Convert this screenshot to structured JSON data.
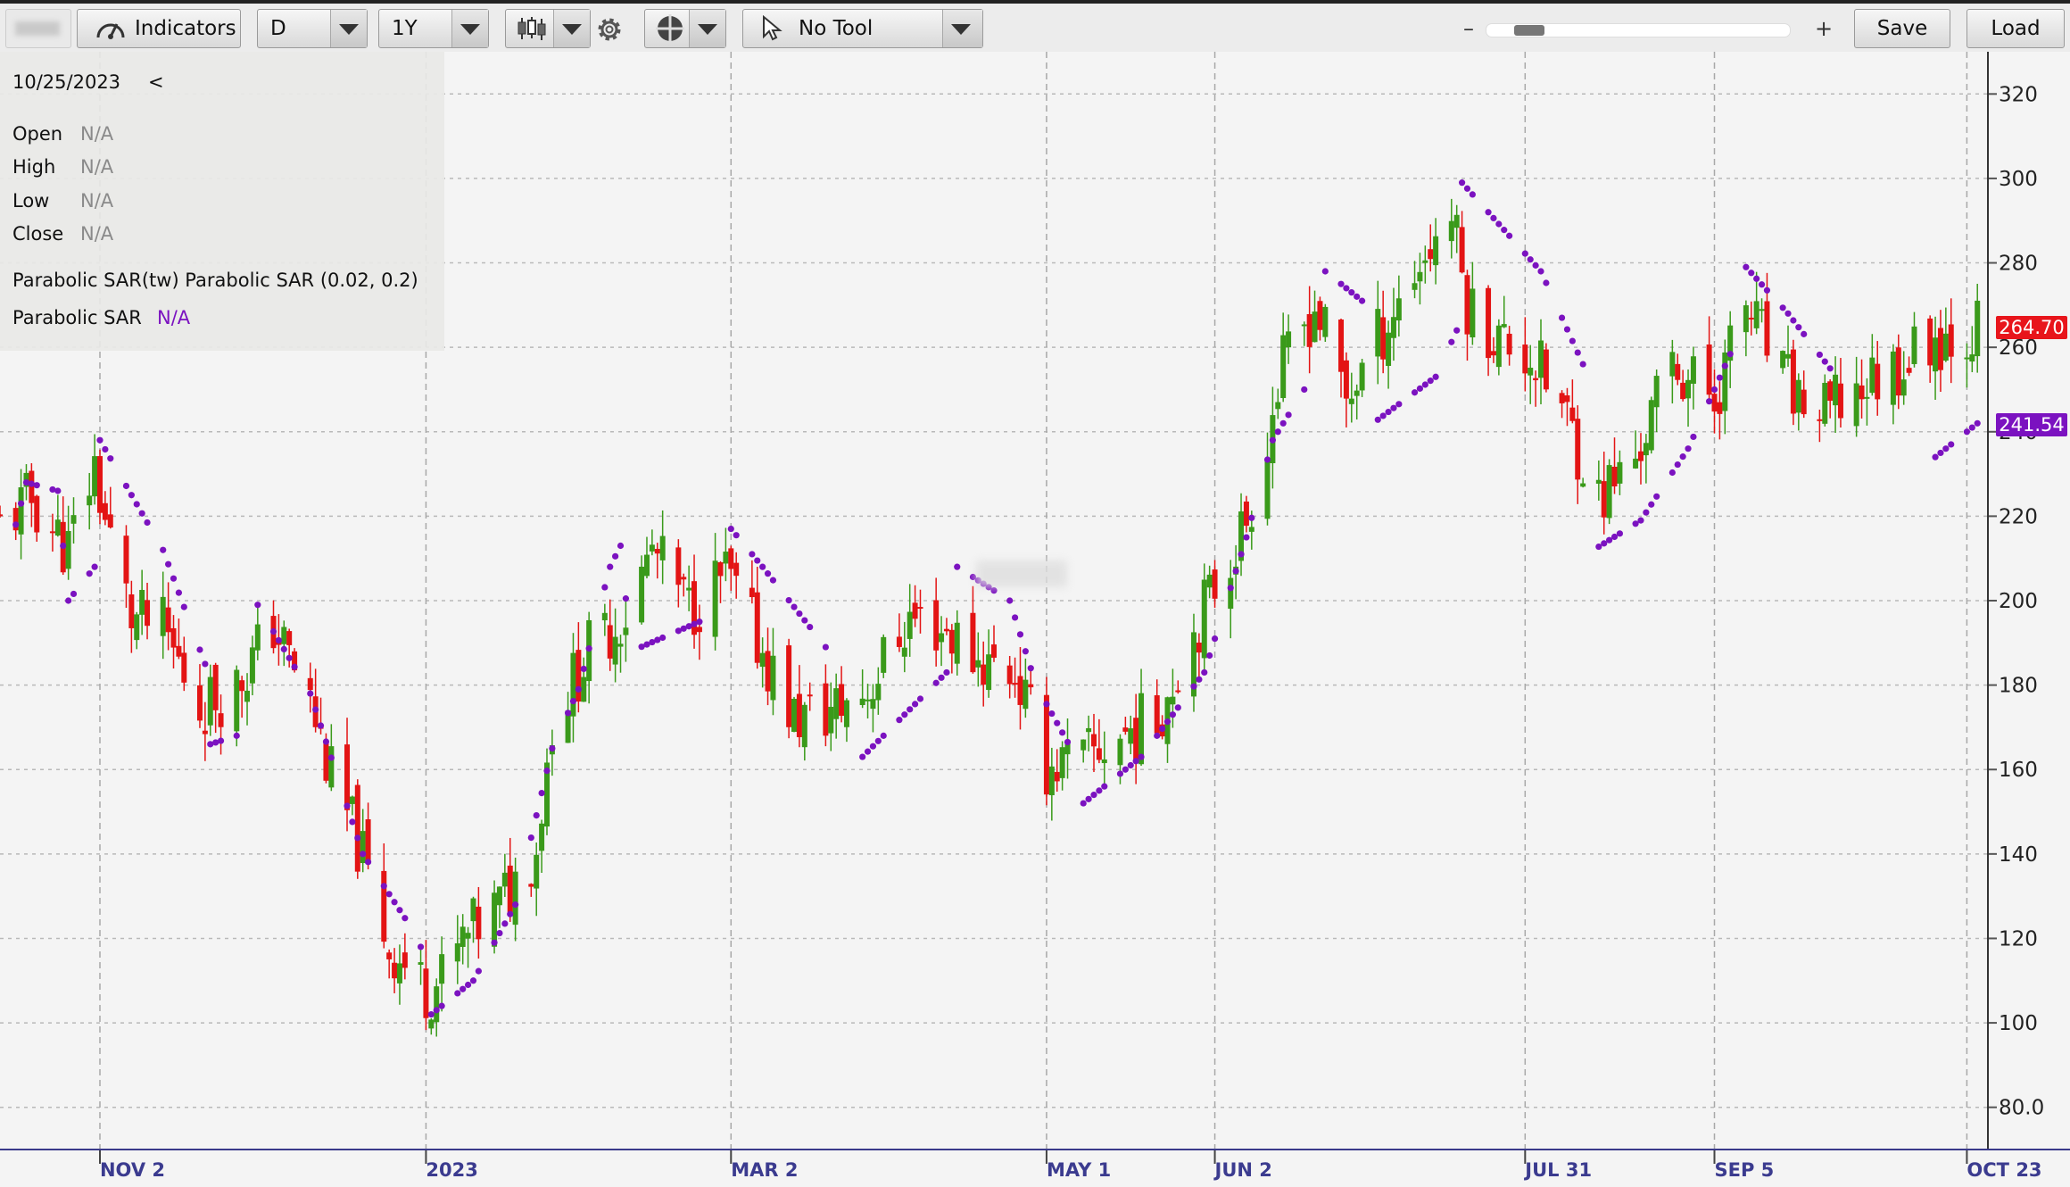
{
  "toolbar": {
    "symbol_blurred": "",
    "indicators_label": "Indicators",
    "interval": "D",
    "range": "1Y",
    "tool": "No Tool",
    "zoom_minus": "–",
    "zoom_plus": "+",
    "zoom_fraction": 0.1,
    "save_label": "Save",
    "load_label": "Load"
  },
  "info_panel": {
    "date": "10/25/2023",
    "collapse": "<",
    "open_label": "Open",
    "open_value": "N/A",
    "high_label": "High",
    "high_value": "N/A",
    "low_label": "Low",
    "low_value": "N/A",
    "close_label": "Close",
    "close_value": "N/A",
    "study_title": "Parabolic SAR(tw) Parabolic SAR (0.02, 0.2)",
    "sar_label": "Parabolic SAR",
    "sar_value": "N/A"
  },
  "price_tags": {
    "last_price": "264.70",
    "last_price_value": 264.7,
    "sar_price": "241.54",
    "sar_price_value": 241.54
  },
  "colors": {
    "up": "#3a9a1a",
    "down": "#e31414",
    "sar": "#7b12c0",
    "last_price_bg": "#e8151b",
    "sar_bg": "#7b12c0",
    "axis_text": "#3b3b8f"
  },
  "chart_data": {
    "type": "candlestick",
    "study": "Parabolic SAR (0.02, 0.2)",
    "x_range": [
      "2022-10-14",
      "2023-10-27"
    ],
    "ylim": [
      70,
      330
    ],
    "y_ticks": [
      80,
      100,
      120,
      140,
      160,
      180,
      200,
      220,
      240,
      260,
      280,
      300,
      320
    ],
    "y_tick_labels": [
      "80.0",
      "100",
      "120",
      "140",
      "160",
      "180",
      "200",
      "220",
      "240",
      "260",
      "280",
      "300",
      "320"
    ],
    "x_ticks": [
      {
        "date": "2022-11-02",
        "label": "NOV 2"
      },
      {
        "date": "2023-01-03",
        "label": "2023"
      },
      {
        "date": "2023-03-02",
        "label": "MAR 2"
      },
      {
        "date": "2023-05-01",
        "label": "MAY 1"
      },
      {
        "date": "2023-06-02",
        "label": "JUN 2"
      },
      {
        "date": "2023-07-31",
        "label": "JUL 31"
      },
      {
        "date": "2023-09-05",
        "label": "SEP 5"
      },
      {
        "date": "2023-10-23",
        "label": "OCT 23"
      }
    ],
    "grid": true,
    "close_trace": [
      [
        "2022-10-14",
        218
      ],
      [
        "2022-10-20",
        224
      ],
      [
        "2022-10-27",
        212
      ],
      [
        "2022-11-01",
        232
      ],
      [
        "2022-11-03",
        219
      ],
      [
        "2022-11-08",
        196
      ],
      [
        "2022-11-14",
        193
      ],
      [
        "2022-11-21",
        175
      ],
      [
        "2022-11-28",
        180
      ],
      [
        "2022-12-05",
        194
      ],
      [
        "2022-12-12",
        176
      ],
      [
        "2022-12-16",
        158
      ],
      [
        "2022-12-21",
        143
      ],
      [
        "2022-12-27",
        118
      ],
      [
        "2023-01-03",
        108
      ],
      [
        "2023-01-06",
        110
      ],
      [
        "2023-01-10",
        119
      ],
      [
        "2023-01-17",
        128
      ],
      [
        "2023-01-24",
        142
      ],
      [
        "2023-01-27",
        172
      ],
      [
        "2023-02-03",
        188
      ],
      [
        "2023-02-10",
        197
      ],
      [
        "2023-02-15",
        212
      ],
      [
        "2023-02-22",
        198
      ],
      [
        "2023-03-01",
        206
      ],
      [
        "2023-03-08",
        188
      ],
      [
        "2023-03-14",
        172
      ],
      [
        "2023-03-20",
        173
      ],
      [
        "2023-03-28",
        179
      ],
      [
        "2023-04-05",
        196
      ],
      [
        "2023-04-12",
        193
      ],
      [
        "2023-04-18",
        186
      ],
      [
        "2023-04-25",
        183
      ],
      [
        "2023-05-01",
        161
      ],
      [
        "2023-05-08",
        162
      ],
      [
        "2023-05-15",
        168
      ],
      [
        "2023-05-22",
        172
      ],
      [
        "2023-05-26",
        185
      ],
      [
        "2023-06-01",
        201
      ],
      [
        "2023-06-08",
        219
      ],
      [
        "2023-06-15",
        255
      ],
      [
        "2023-06-21",
        270
      ],
      [
        "2023-06-27",
        248
      ],
      [
        "2023-07-03",
        262
      ],
      [
        "2023-07-10",
        278
      ],
      [
        "2023-07-17",
        292
      ],
      [
        "2023-07-20",
        270
      ],
      [
        "2023-07-26",
        262
      ],
      [
        "2023-08-01",
        258
      ],
      [
        "2023-08-08",
        243
      ],
      [
        "2023-08-14",
        224
      ],
      [
        "2023-08-21",
        234
      ],
      [
        "2023-08-28",
        256
      ],
      [
        "2023-09-05",
        248
      ],
      [
        "2023-09-11",
        270
      ],
      [
        "2023-09-18",
        252
      ],
      [
        "2023-09-25",
        243
      ],
      [
        "2023-10-02",
        250
      ],
      [
        "2023-10-10",
        256
      ],
      [
        "2023-10-16",
        262
      ],
      [
        "2023-10-25",
        264.7
      ]
    ],
    "sar_trace": [
      [
        "2022-10-15",
        208,
        "below"
      ],
      [
        "2022-10-19",
        228,
        "below"
      ],
      [
        "2022-10-25",
        226,
        "below"
      ],
      [
        "2022-10-27",
        200,
        "below"
      ],
      [
        "2022-11-01",
        208,
        "below"
      ],
      [
        "2022-11-02",
        238,
        "above"
      ],
      [
        "2022-11-14",
        212,
        "above"
      ],
      [
        "2022-11-22",
        185,
        "above"
      ],
      [
        "2022-11-23",
        166,
        "below"
      ],
      [
        "2022-11-28",
        168,
        "below"
      ],
      [
        "2022-12-02",
        199,
        "above"
      ],
      [
        "2022-12-12",
        178,
        "above"
      ],
      [
        "2022-12-22",
        140,
        "above"
      ],
      [
        "2023-01-01",
        121,
        "above"
      ],
      [
        "2023-01-02",
        118,
        "above"
      ],
      [
        "2023-01-04",
        102,
        "below"
      ],
      [
        "2023-01-12",
        110,
        "below"
      ],
      [
        "2023-01-20",
        128,
        "below"
      ],
      [
        "2023-01-27",
        165,
        "below"
      ],
      [
        "2023-02-01",
        179,
        "below"
      ],
      [
        "2023-02-07",
        208,
        "below"
      ],
      [
        "2023-02-09",
        213,
        "below"
      ],
      [
        "2023-02-11",
        188,
        "below"
      ],
      [
        "2023-02-24",
        195,
        "below"
      ],
      [
        "2023-03-02",
        217,
        "above"
      ],
      [
        "2023-03-08",
        208,
        "above"
      ],
      [
        "2023-03-20",
        189,
        "above"
      ],
      [
        "2023-03-27",
        163,
        "below"
      ],
      [
        "2023-04-12",
        183,
        "below"
      ],
      [
        "2023-04-14",
        208,
        "above"
      ],
      [
        "2023-04-24",
        200,
        "above"
      ],
      [
        "2023-04-29",
        180,
        "above"
      ],
      [
        "2023-05-07",
        162,
        "above"
      ],
      [
        "2023-05-08",
        152,
        "below"
      ],
      [
        "2023-05-19",
        163,
        "below"
      ],
      [
        "2023-05-31",
        183,
        "below"
      ],
      [
        "2023-06-08",
        215,
        "below"
      ],
      [
        "2023-06-13",
        238,
        "below"
      ],
      [
        "2023-06-19",
        250,
        "below"
      ],
      [
        "2023-06-23",
        278,
        "above"
      ],
      [
        "2023-06-30",
        271,
        "above"
      ],
      [
        "2023-07-01",
        241,
        "below"
      ],
      [
        "2023-07-14",
        253,
        "below"
      ],
      [
        "2023-07-18",
        264,
        "below"
      ],
      [
        "2023-07-19",
        299,
        "above"
      ],
      [
        "2023-08-03",
        278,
        "above"
      ],
      [
        "2023-08-11",
        256,
        "above"
      ],
      [
        "2023-08-13",
        212,
        "below"
      ],
      [
        "2023-08-22",
        219,
        "below"
      ],
      [
        "2023-08-31",
        236,
        "below"
      ],
      [
        "2023-09-10",
        264,
        "below"
      ],
      [
        "2023-09-11",
        279,
        "above"
      ],
      [
        "2023-09-19",
        268,
        "above"
      ],
      [
        "2023-09-27",
        255,
        "above"
      ],
      [
        "2023-10-17",
        234,
        "below"
      ],
      [
        "2023-10-25",
        242,
        "below"
      ]
    ]
  }
}
